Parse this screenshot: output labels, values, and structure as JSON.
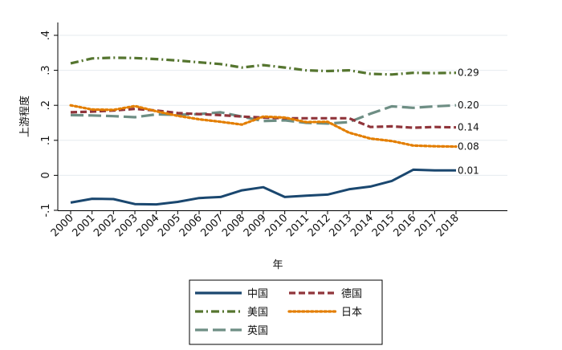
{
  "chart_data": {
    "type": "line",
    "title": "",
    "xlabel": "年",
    "ylabel": "上游程度",
    "x": [
      "2000",
      "2001",
      "2002",
      "2003",
      "2004",
      "2005",
      "2006",
      "2007",
      "2008",
      "2009",
      "2010",
      "2011",
      "2012",
      "2013",
      "2014",
      "2015",
      "2016",
      "2017",
      "2018"
    ],
    "yticks": [
      {
        "value": -0.1,
        "label": "-.1"
      },
      {
        "value": 0,
        "label": "0"
      },
      {
        "value": 0.1,
        "label": ".1"
      },
      {
        "value": 0.2,
        "label": ".2"
      },
      {
        "value": 0.3,
        "label": ".3"
      },
      {
        "value": 0.4,
        "label": ".4"
      }
    ],
    "ylim": [
      -0.1,
      0.4
    ],
    "grid": true,
    "legend_position": "bottom",
    "series": [
      {
        "key": "china",
        "name": "中国",
        "color": "#1a476f",
        "style": "solid",
        "values": [
          -0.078,
          -0.067,
          -0.068,
          -0.082,
          -0.083,
          -0.076,
          -0.065,
          -0.062,
          -0.043,
          -0.034,
          -0.062,
          -0.058,
          -0.055,
          -0.04,
          -0.032,
          -0.016,
          0.016,
          0.014,
          0.014
        ],
        "end_label": "0.01"
      },
      {
        "key": "germany",
        "name": "德国",
        "color": "#90353b",
        "style": "dash",
        "values": [
          0.18,
          0.182,
          0.185,
          0.19,
          0.185,
          0.178,
          0.175,
          0.172,
          0.168,
          0.165,
          0.163,
          0.163,
          0.163,
          0.163,
          0.138,
          0.14,
          0.136,
          0.138,
          0.137
        ],
        "end_label": "0.14"
      },
      {
        "key": "usa",
        "name": "美国",
        "color": "#55752f",
        "style": "dashdot",
        "values": [
          0.32,
          0.334,
          0.336,
          0.335,
          0.332,
          0.328,
          0.323,
          0.318,
          0.308,
          0.315,
          0.308,
          0.3,
          0.298,
          0.3,
          0.29,
          0.288,
          0.293,
          0.292,
          0.293
        ],
        "end_label": "0.29"
      },
      {
        "key": "japan",
        "name": "日本",
        "color": "#e37e00",
        "style": "dot",
        "values": [
          0.2,
          0.188,
          0.187,
          0.198,
          0.183,
          0.17,
          0.16,
          0.153,
          0.145,
          0.168,
          0.165,
          0.152,
          0.153,
          0.122,
          0.105,
          0.098,
          0.085,
          0.083,
          0.082
        ],
        "end_label": "0.08"
      },
      {
        "key": "uk",
        "name": "英国",
        "color": "#6e8e84",
        "style": "longdash",
        "values": [
          0.172,
          0.171,
          0.169,
          0.166,
          0.174,
          0.173,
          0.175,
          0.18,
          0.168,
          0.155,
          0.157,
          0.15,
          0.148,
          0.152,
          0.176,
          0.197,
          0.193,
          0.197,
          0.2
        ],
        "end_label": "0.20"
      }
    ],
    "legend": [
      {
        "key": "china",
        "name": "中国"
      },
      {
        "key": "germany",
        "name": "德国"
      },
      {
        "key": "usa",
        "name": "美国"
      },
      {
        "key": "japan",
        "name": "日本"
      },
      {
        "key": "uk",
        "name": "英国"
      }
    ]
  },
  "colors": {
    "grid": "#e6ebef",
    "axis": "#000000",
    "legend_border": "#000000",
    "background": "#ffffff"
  }
}
